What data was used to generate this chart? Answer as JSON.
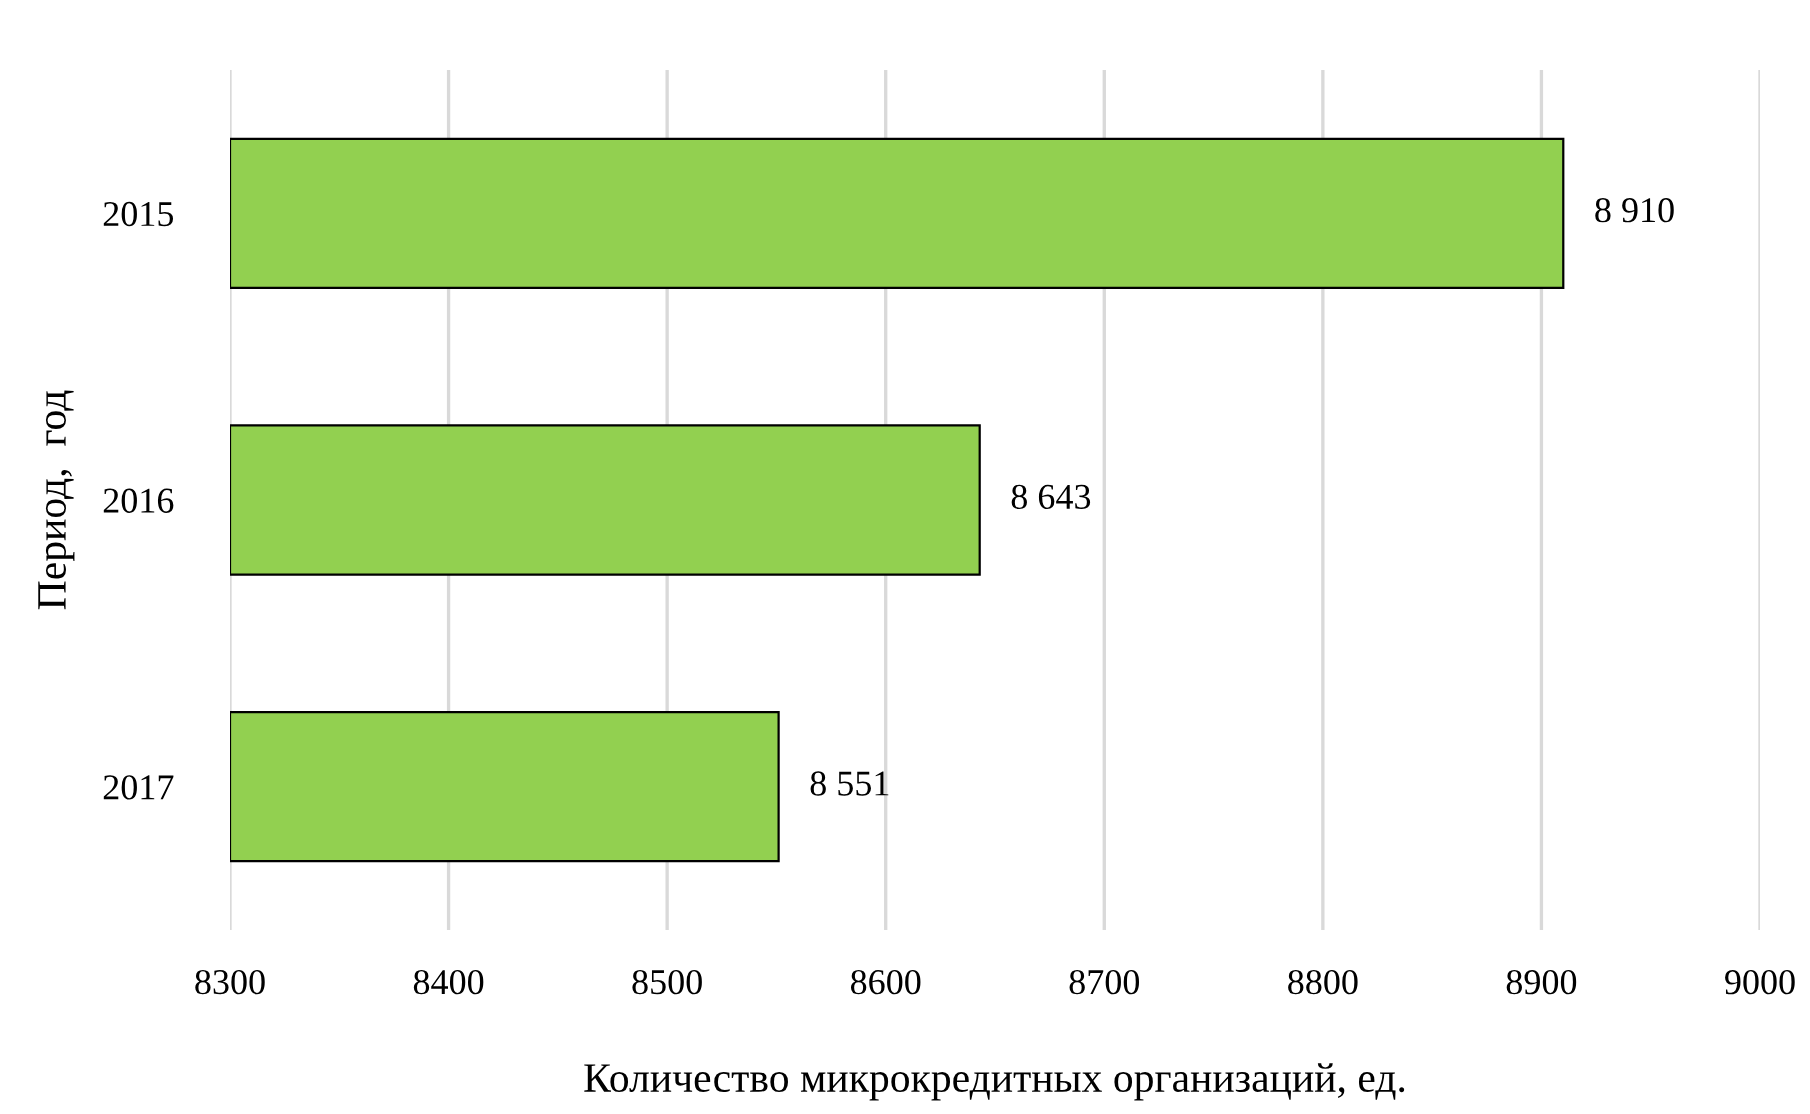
{
  "chart_data": {
    "type": "bar",
    "orientation": "horizontal",
    "categories": [
      "2015",
      "2016",
      "2017"
    ],
    "values": [
      8910,
      8643,
      8551
    ],
    "value_labels": [
      "8 910",
      "8 643",
      "8 551"
    ],
    "color": "#92d050",
    "xlim": [
      8300,
      9000
    ],
    "xticks": [
      8300,
      8400,
      8500,
      8600,
      8700,
      8800,
      8900,
      9000
    ],
    "xlabel": "Количество микрокредитных организаций, ед.",
    "ylabel": "Период,  год",
    "grid": "x"
  }
}
